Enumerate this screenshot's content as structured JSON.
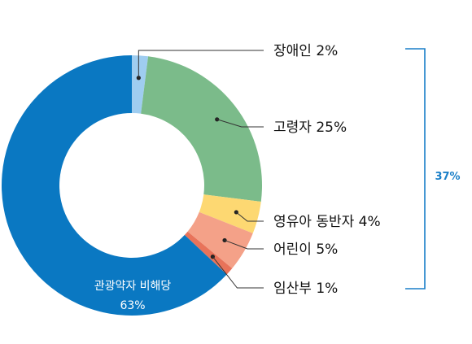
{
  "chart_data": {
    "type": "pie",
    "donut": true,
    "slices": [
      {
        "name": "장애인",
        "value": 2,
        "color": "#9fcdf0",
        "label": "장애인 2%"
      },
      {
        "name": "고령자",
        "value": 25,
        "color": "#7bbb8a",
        "label": "고령자 25%"
      },
      {
        "name": "영유아 동반자",
        "value": 4,
        "color": "#fdd872",
        "label": "영유아 동반자 4%"
      },
      {
        "name": "어린이",
        "value": 5,
        "color": "#f4a188",
        "label": "어린이 5%"
      },
      {
        "name": "임산부",
        "value": 1,
        "color": "#e8735a",
        "label": "임산부 1%"
      },
      {
        "name": "관광약자 비해당",
        "value": 63,
        "color": "#0a78c2",
        "label": "관광약자 비해당",
        "pct_label": "63%"
      }
    ],
    "bracket": {
      "label": "37%",
      "color": "#1a7fc8"
    }
  }
}
